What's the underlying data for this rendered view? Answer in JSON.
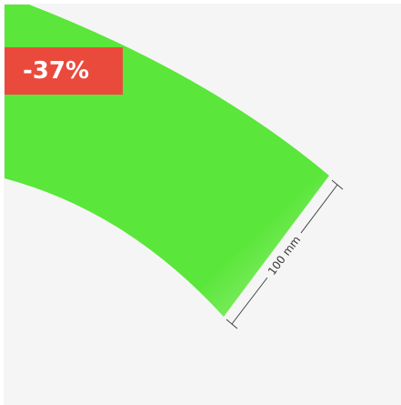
{
  "badge": {
    "text": "-37%"
  },
  "dimension": {
    "label": "100 mm"
  }
}
